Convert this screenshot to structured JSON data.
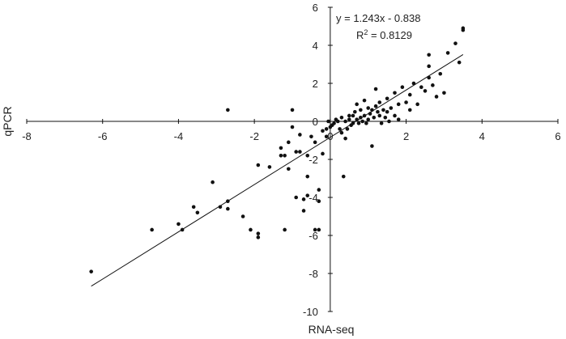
{
  "chart_data": {
    "type": "scatter",
    "title": "",
    "xlabel": "RNA-seq",
    "ylabel": "qPCR",
    "xlim": [
      -8,
      6
    ],
    "ylim": [
      -10,
      6
    ],
    "x_ticks": [
      -8,
      -6,
      -4,
      -2,
      0,
      2,
      4,
      6
    ],
    "y_ticks": [
      -10,
      -8,
      -6,
      -4,
      -2,
      0,
      2,
      4,
      6
    ],
    "grid": false,
    "legend": "none",
    "annotations": {
      "equation": "y = 1.243x - 0.838",
      "r2_base": "R",
      "r2_sup": "2",
      "r2_value": " = 0.8129"
    },
    "trendline": {
      "slope": 1.243,
      "intercept": -0.838,
      "x_range": [
        -6.3,
        3.5
      ]
    },
    "points": [
      [
        -6.3,
        -7.9
      ],
      [
        -4.7,
        -5.7
      ],
      [
        -4.0,
        -5.4
      ],
      [
        -3.9,
        -5.7
      ],
      [
        -3.6,
        -4.5
      ],
      [
        -3.5,
        -4.8
      ],
      [
        -3.1,
        -3.2
      ],
      [
        -2.9,
        -4.5
      ],
      [
        -2.7,
        -4.2
      ],
      [
        -2.7,
        -4.6
      ],
      [
        -2.7,
        0.6
      ],
      [
        -2.3,
        -5.0
      ],
      [
        -2.1,
        -5.7
      ],
      [
        -1.9,
        -5.9
      ],
      [
        -1.9,
        -6.1
      ],
      [
        -1.9,
        -2.3
      ],
      [
        -1.6,
        -2.4
      ],
      [
        -1.3,
        -1.8
      ],
      [
        -1.3,
        -1.4
      ],
      [
        -1.2,
        -1.8
      ],
      [
        -1.2,
        -5.7
      ],
      [
        -1.1,
        -2.5
      ],
      [
        -1.1,
        -1.1
      ],
      [
        -1.0,
        0.6
      ],
      [
        -1.0,
        -0.3
      ],
      [
        -0.9,
        -1.6
      ],
      [
        -0.9,
        -4.0
      ],
      [
        -0.8,
        -0.7
      ],
      [
        -0.8,
        -1.6
      ],
      [
        -0.7,
        -4.1
      ],
      [
        -0.7,
        -4.7
      ],
      [
        -0.6,
        -3.9
      ],
      [
        -0.6,
        -1.8
      ],
      [
        -0.6,
        -2.9
      ],
      [
        -0.5,
        -0.8
      ],
      [
        -0.4,
        -1.1
      ],
      [
        -0.4,
        -5.7
      ],
      [
        -0.3,
        -5.7
      ],
      [
        -0.3,
        -3.6
      ],
      [
        -0.3,
        -4.2
      ],
      [
        -0.2,
        -1.7
      ],
      [
        -0.2,
        -0.5
      ],
      [
        -0.1,
        -0.8
      ],
      [
        -0.1,
        -0.4
      ],
      [
        -0.05,
        0.0
      ],
      [
        0.0,
        -0.3
      ],
      [
        0.05,
        -0.2
      ],
      [
        0.1,
        -0.1
      ],
      [
        0.15,
        0.1
      ],
      [
        0.2,
        0.0
      ],
      [
        0.25,
        -0.4
      ],
      [
        0.3,
        0.2
      ],
      [
        0.3,
        -0.6
      ],
      [
        0.35,
        -2.9
      ],
      [
        0.4,
        0.0
      ],
      [
        0.4,
        -0.9
      ],
      [
        0.45,
        -0.4
      ],
      [
        0.5,
        0.1
      ],
      [
        0.5,
        0.3
      ],
      [
        0.55,
        -0.2
      ],
      [
        0.6,
        0.3
      ],
      [
        0.6,
        -0.1
      ],
      [
        0.65,
        0.5
      ],
      [
        0.7,
        0.1
      ],
      [
        0.7,
        0.9
      ],
      [
        0.75,
        -0.1
      ],
      [
        0.8,
        0.2
      ],
      [
        0.8,
        0.6
      ],
      [
        0.85,
        0.0
      ],
      [
        0.9,
        0.3
      ],
      [
        0.9,
        1.1
      ],
      [
        0.95,
        -0.1
      ],
      [
        1.0,
        0.7
      ],
      [
        1.0,
        0.1
      ],
      [
        1.05,
        0.4
      ],
      [
        1.1,
        -1.3
      ],
      [
        1.1,
        0.6
      ],
      [
        1.15,
        0.2
      ],
      [
        1.2,
        0.8
      ],
      [
        1.2,
        1.7
      ],
      [
        1.25,
        0.5
      ],
      [
        1.3,
        0.3
      ],
      [
        1.3,
        1.0
      ],
      [
        1.35,
        -0.1
      ],
      [
        1.4,
        0.6
      ],
      [
        1.45,
        0.2
      ],
      [
        1.5,
        1.2
      ],
      [
        1.5,
        0.5
      ],
      [
        1.55,
        0.0
      ],
      [
        1.6,
        0.7
      ],
      [
        1.7,
        0.3
      ],
      [
        1.7,
        1.5
      ],
      [
        1.8,
        0.1
      ],
      [
        1.8,
        0.9
      ],
      [
        1.9,
        1.8
      ],
      [
        2.0,
        1.0
      ],
      [
        2.1,
        1.4
      ],
      [
        2.1,
        0.6
      ],
      [
        2.2,
        2.0
      ],
      [
        2.3,
        0.9
      ],
      [
        2.4,
        1.8
      ],
      [
        2.5,
        1.6
      ],
      [
        2.6,
        3.5
      ],
      [
        2.6,
        2.3
      ],
      [
        2.6,
        2.9
      ],
      [
        2.7,
        1.9
      ],
      [
        2.8,
        1.3
      ],
      [
        2.9,
        2.5
      ],
      [
        3.0,
        1.5
      ],
      [
        3.1,
        3.6
      ],
      [
        3.3,
        4.1
      ],
      [
        3.4,
        3.1
      ],
      [
        3.5,
        4.8
      ],
      [
        3.5,
        4.9
      ]
    ]
  }
}
